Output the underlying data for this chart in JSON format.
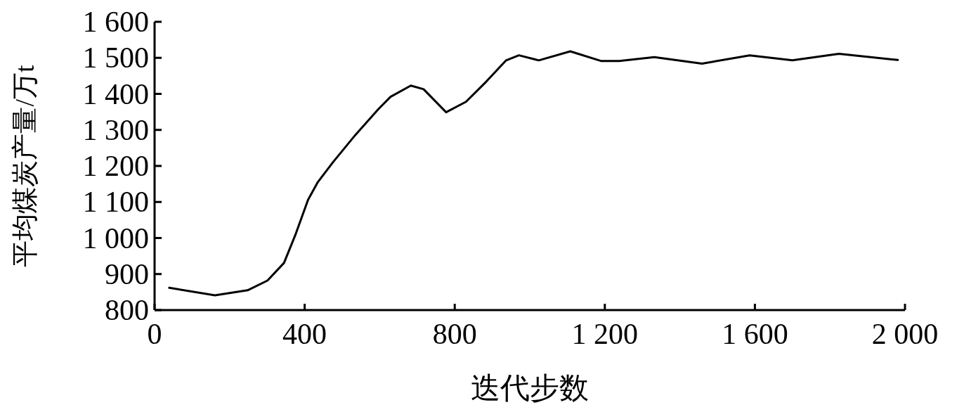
{
  "chart_data": {
    "type": "line",
    "xlabel": "迭代步数",
    "ylabel": "平均煤炭产量/万t",
    "xlim": [
      0,
      2000
    ],
    "ylim": [
      800,
      1600
    ],
    "xticks": [
      0,
      400,
      800,
      {
        "value": 1200,
        "label": "1 200"
      },
      {
        "value": 1600,
        "label": "1 600"
      },
      {
        "value": 2000,
        "label": "2 000"
      }
    ],
    "yticks": [
      800,
      900,
      {
        "value": 1000,
        "label": "1 000"
      },
      {
        "value": 1100,
        "label": "1 100"
      },
      {
        "value": 1200,
        "label": "1 200"
      },
      {
        "value": 1300,
        "label": "1 300"
      },
      {
        "value": 1400,
        "label": "1 400"
      },
      {
        "value": 1500,
        "label": "1 500"
      },
      {
        "value": 1600,
        "label": "1 600"
      }
    ],
    "marker": "none",
    "line_style": "solid",
    "series": [
      {
        "color": "#000000",
        "x": [
          39,
          161,
          248,
          301,
          345,
          375,
          409,
          435,
          476,
          536,
          596,
          629,
          683,
          717,
          777,
          830,
          884,
          937,
          971,
          1024,
          1108,
          1191,
          1238,
          1332,
          1459,
          1586,
          1700,
          1824,
          1981
        ],
        "values": [
          862,
          841,
          855,
          882,
          931,
          1008,
          1106,
          1155,
          1211,
          1287,
          1357,
          1392,
          1423,
          1413,
          1349,
          1378,
          1434,
          1493,
          1507,
          1493,
          1518,
          1491,
          1491,
          1502,
          1484,
          1507,
          1493,
          1511,
          1494
        ]
      }
    ]
  }
}
